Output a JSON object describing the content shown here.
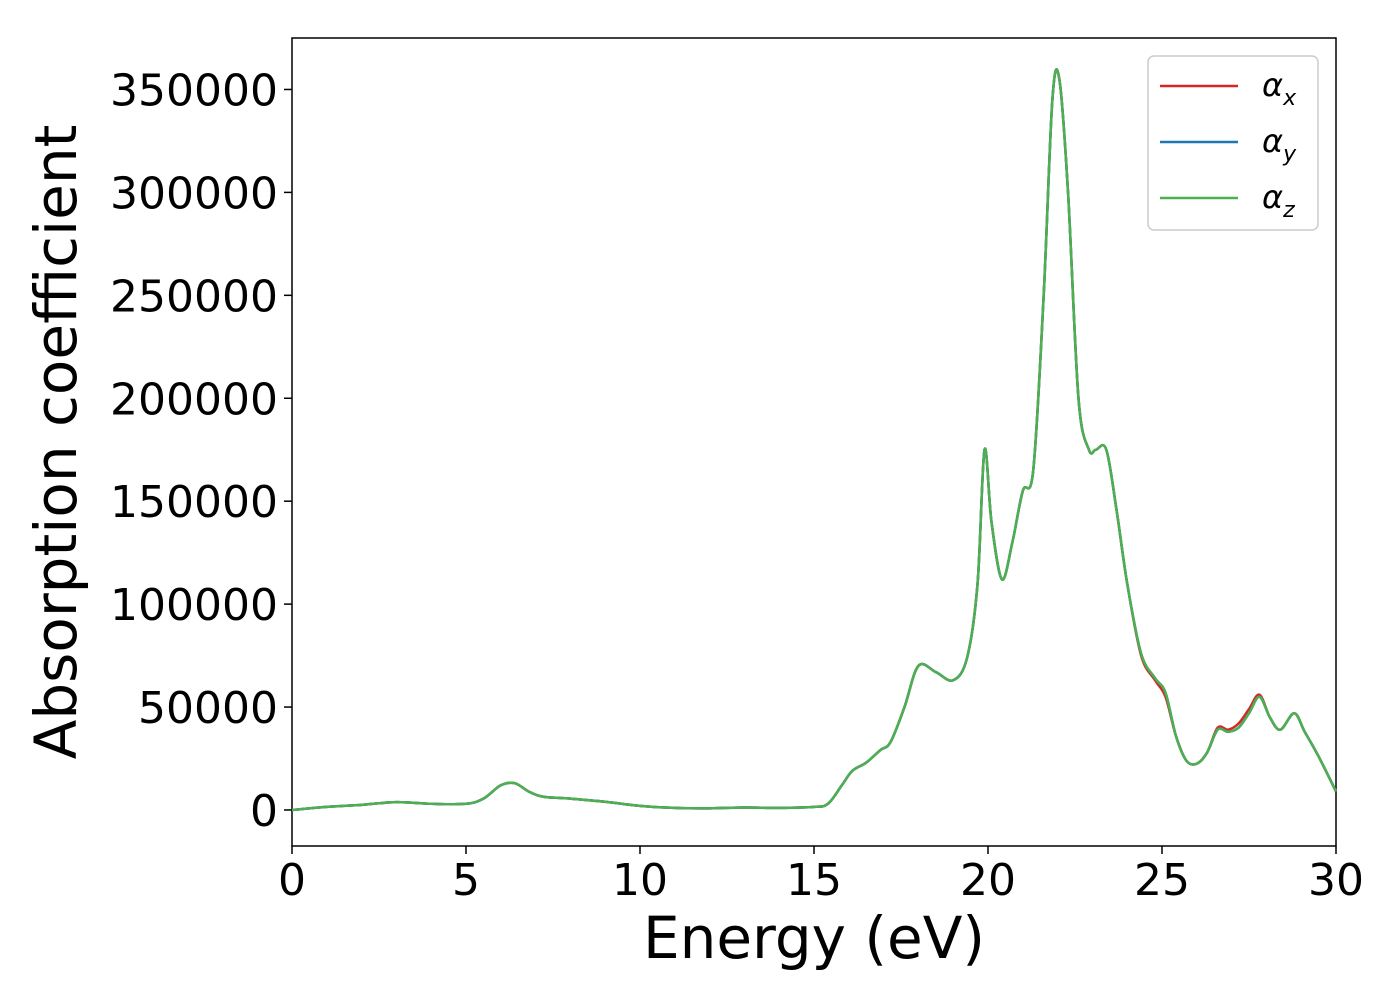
{
  "chart_data": {
    "type": "line",
    "xlabel": "Energy (eV)",
    "ylabel": "Absorption coefficient",
    "xlim": [
      0,
      30
    ],
    "ylim": [
      -17500,
      375000
    ],
    "xticks": [
      "0",
      "5",
      "10",
      "15",
      "20",
      "25",
      "30"
    ],
    "yticks": [
      "0",
      "50000",
      "100000",
      "150000",
      "200000",
      "250000",
      "300000",
      "350000"
    ],
    "grid": false,
    "legend_position": "top-right",
    "legend": [
      {
        "symbol": "α",
        "sub": "x",
        "color": "#d62728"
      },
      {
        "symbol": "α",
        "sub": "y",
        "color": "#1f77b4"
      },
      {
        "symbol": "α",
        "sub": "z",
        "color": "#4caf50"
      }
    ],
    "series": [
      {
        "color": "#d62728",
        "x": [
          0,
          1,
          2,
          3,
          4,
          5,
          5.5,
          6,
          6.4,
          6.8,
          7.2,
          8,
          9,
          10,
          11,
          12,
          13,
          14,
          15,
          15.4,
          15.8,
          16.1,
          16.5,
          16.9,
          17.2,
          17.6,
          18,
          18.5,
          19,
          19.4,
          19.7,
          19.9,
          20.1,
          20.4,
          20.7,
          21,
          21.3,
          21.6,
          21.85,
          22.05,
          22.3,
          22.6,
          22.9,
          23.1,
          23.4,
          23.7,
          24,
          24.4,
          24.8,
          25.1,
          25.4,
          25.7,
          26,
          26.3,
          26.6,
          26.9,
          27.2,
          27.5,
          27.8,
          28.1,
          28.4,
          28.8,
          29.1,
          29.5,
          30
        ],
        "y": [
          0,
          1500,
          2500,
          3800,
          3000,
          3000,
          5500,
          12000,
          13000,
          9000,
          6500,
          5500,
          4000,
          2000,
          1000,
          800,
          1200,
          1000,
          1500,
          3000,
          12000,
          19000,
          23000,
          29000,
          33000,
          50000,
          70000,
          67000,
          63000,
          74000,
          110000,
          175000,
          140000,
          112000,
          130000,
          155000,
          165000,
          250000,
          345000,
          355000,
          300000,
          200000,
          175000,
          175000,
          175000,
          145000,
          110000,
          75000,
          63000,
          55000,
          36000,
          24000,
          22500,
          28000,
          40000,
          39000,
          42000,
          49000,
          56000,
          45000,
          39000,
          47000,
          38000,
          26000,
          9000
        ]
      },
      {
        "color": "#1f77b4",
        "x": [
          0,
          1,
          2,
          3,
          4,
          5,
          5.5,
          6,
          6.4,
          6.8,
          7.2,
          8,
          9,
          10,
          11,
          12,
          13,
          14,
          15,
          15.4,
          15.8,
          16.1,
          16.5,
          16.9,
          17.2,
          17.6,
          18,
          18.5,
          19,
          19.4,
          19.7,
          19.9,
          20.1,
          20.4,
          20.7,
          21,
          21.3,
          21.6,
          21.85,
          22.05,
          22.3,
          22.6,
          22.9,
          23.1,
          23.4,
          23.7,
          24,
          24.4,
          24.8,
          25.1,
          25.4,
          25.7,
          26,
          26.3,
          26.6,
          26.9,
          27.2,
          27.5,
          27.8,
          28.1,
          28.4,
          28.8,
          29.1,
          29.5,
          30
        ],
        "y": [
          0,
          1500,
          2500,
          3800,
          3000,
          3000,
          5500,
          12000,
          13000,
          9000,
          6500,
          5500,
          4000,
          2000,
          1000,
          800,
          1200,
          1000,
          1500,
          3000,
          12000,
          19000,
          23000,
          29000,
          33000,
          50000,
          70000,
          67000,
          63000,
          74000,
          110000,
          175000,
          140000,
          112000,
          130000,
          155000,
          165000,
          250000,
          345000,
          355000,
          300000,
          200000,
          175000,
          175000,
          175000,
          145000,
          110000,
          76000,
          64000,
          57000,
          36000,
          24000,
          22500,
          28000,
          39000,
          38000,
          40000,
          47000,
          55000,
          45000,
          39000,
          47000,
          38000,
          26000,
          9000
        ]
      },
      {
        "color": "#4caf50",
        "x": [
          0,
          1,
          2,
          3,
          4,
          5,
          5.5,
          6,
          6.4,
          6.8,
          7.2,
          8,
          9,
          10,
          11,
          12,
          13,
          14,
          15,
          15.4,
          15.8,
          16.1,
          16.5,
          16.9,
          17.2,
          17.6,
          18,
          18.5,
          19,
          19.4,
          19.7,
          19.9,
          20.1,
          20.4,
          20.7,
          21,
          21.3,
          21.6,
          21.85,
          22.05,
          22.3,
          22.6,
          22.9,
          23.1,
          23.4,
          23.7,
          24,
          24.4,
          24.8,
          25.1,
          25.4,
          25.7,
          26,
          26.3,
          26.6,
          26.9,
          27.2,
          27.5,
          27.8,
          28.1,
          28.4,
          28.8,
          29.1,
          29.5,
          30
        ],
        "y": [
          0,
          1500,
          2500,
          3800,
          3000,
          3000,
          5500,
          12000,
          13000,
          9000,
          6500,
          5500,
          4000,
          2000,
          1000,
          800,
          1200,
          1000,
          1500,
          3000,
          12000,
          19000,
          23000,
          29000,
          33000,
          50000,
          70000,
          67000,
          63000,
          74000,
          110000,
          175000,
          140000,
          112000,
          130000,
          155000,
          165000,
          250000,
          345000,
          355000,
          300000,
          200000,
          175000,
          175000,
          175000,
          145000,
          110000,
          76000,
          64000,
          57000,
          36000,
          24000,
          22500,
          28000,
          39000,
          38000,
          40000,
          47000,
          55000,
          45000,
          39000,
          47000,
          38000,
          26000,
          9000
        ]
      }
    ]
  }
}
